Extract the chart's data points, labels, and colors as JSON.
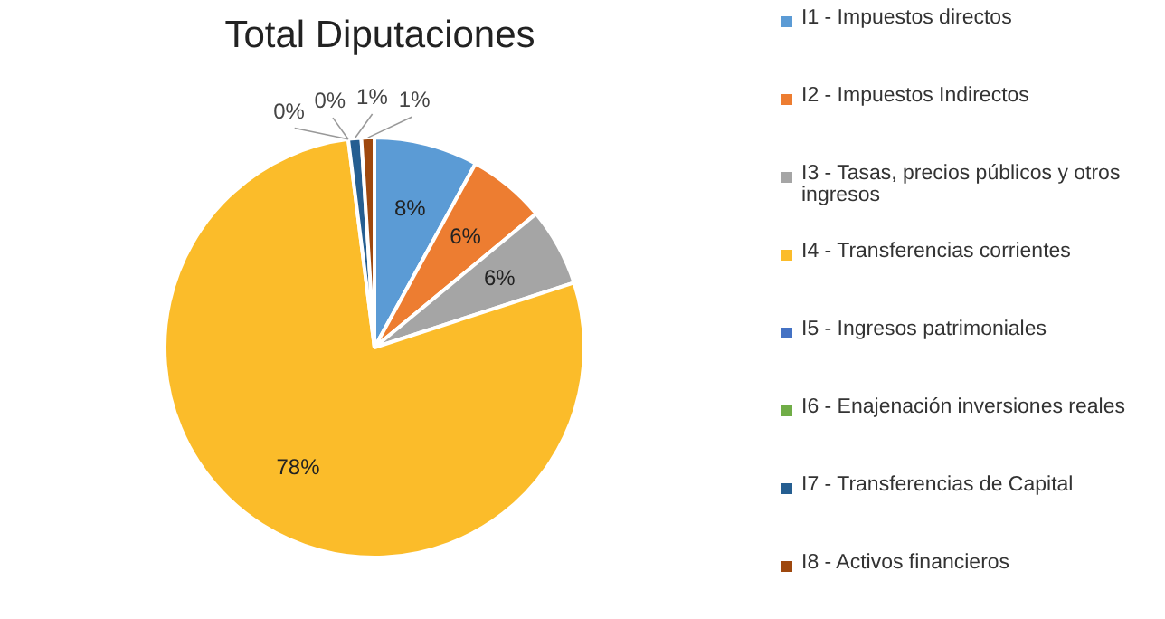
{
  "chart_data": {
    "type": "pie",
    "title": "Total Diputaciones",
    "categories": [
      "I1 - Impuestos directos",
      "I2 - Impuestos Indirectos",
      "I3 - Tasas, precios públicos y otros ingresos",
      "I4 - Transferencias corrientes",
      "I5 - Ingresos patrimoniales",
      "I6 - Enajenación inversiones reales",
      "I7 - Transferencias de Capital",
      "I8 - Activos financieros"
    ],
    "values": [
      8,
      6,
      6,
      78,
      0,
      0,
      1,
      1
    ],
    "colors": [
      "#5b9bd5",
      "#ed7d31",
      "#a5a5a5",
      "#fbbc2a",
      "#4472c4",
      "#70ad47",
      "#255e91",
      "#9e480e"
    ],
    "value_labels": [
      "8%",
      "6%",
      "6%",
      "78%",
      "0%",
      "0%",
      "1%",
      "1%"
    ],
    "legend": "right"
  }
}
